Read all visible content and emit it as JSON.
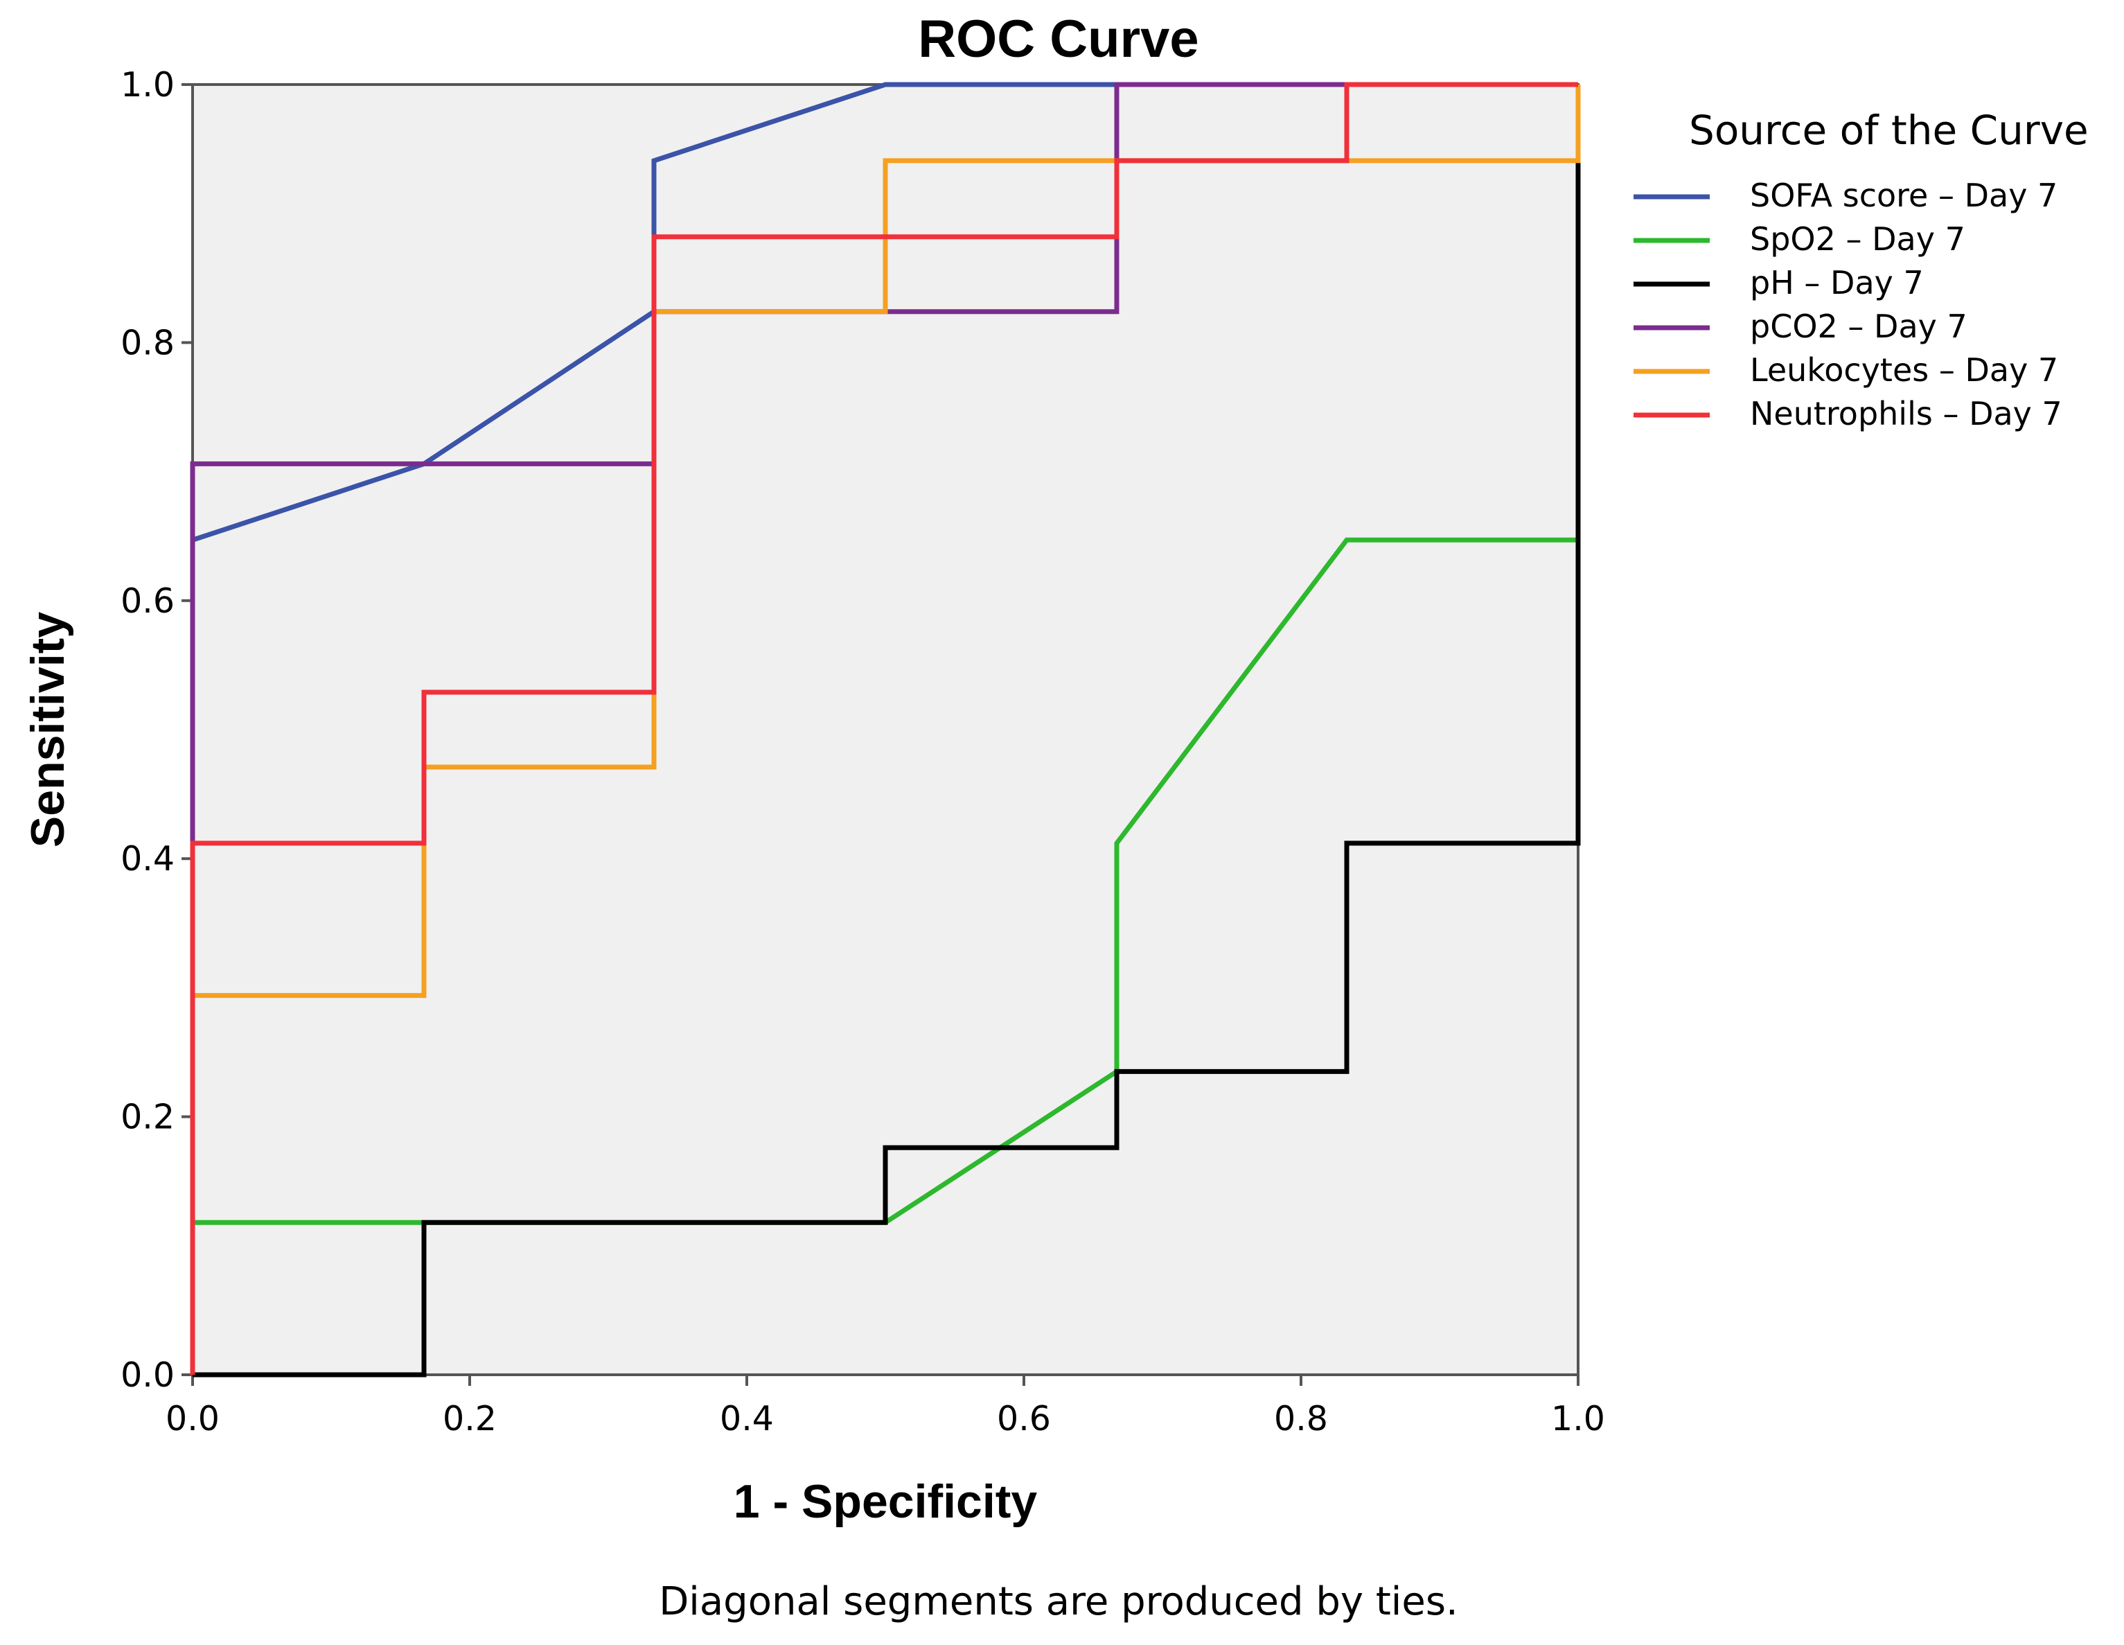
{
  "chart_data": {
    "type": "line",
    "title": "ROC Curve",
    "xlabel": "1 - Specificity",
    "ylabel": "Sensitivity",
    "xlim": [
      0,
      1
    ],
    "ylim": [
      0,
      1
    ],
    "x_ticks": [
      "0.0",
      "0.2",
      "0.4",
      "0.6",
      "0.8",
      "1.0"
    ],
    "y_ticks": [
      "0.0",
      "0.2",
      "0.4",
      "0.6",
      "0.8",
      "1.0"
    ],
    "grid": false,
    "legend_title": "Source of the Curve",
    "legend_position": "top-right",
    "footnote": "Diagonal segments are produced by ties.",
    "series": [
      {
        "name": "SOFA score – Day 7",
        "color": "#3b53a8",
        "x": [
          0,
          0,
          0.167,
          0.333,
          0.333,
          0.5,
          1,
          1
        ],
        "y": [
          0,
          0.647,
          0.706,
          0.824,
          0.941,
          1,
          1,
          1
        ]
      },
      {
        "name": "SpO2 – Day 7",
        "color": "#2db82d",
        "x": [
          0,
          0,
          0.5,
          0.667,
          0.667,
          0.833,
          1,
          1
        ],
        "y": [
          0,
          0.118,
          0.118,
          0.235,
          0.412,
          0.647,
          0.647,
          1
        ]
      },
      {
        "name": "pH – Day 7",
        "color": "#000000",
        "x": [
          0,
          0.167,
          0.167,
          0.5,
          0.5,
          0.667,
          0.667,
          0.833,
          0.833,
          1,
          1
        ],
        "y": [
          0,
          0,
          0.118,
          0.118,
          0.176,
          0.176,
          0.235,
          0.235,
          0.412,
          0.412,
          1
        ]
      },
      {
        "name": "pCO2 – Day 7",
        "color": "#7b2d8e",
        "x": [
          0,
          0,
          0.333,
          0.333,
          0.667,
          0.667,
          1
        ],
        "y": [
          0,
          0.706,
          0.706,
          0.824,
          0.824,
          1,
          1
        ]
      },
      {
        "name": "Leukocytes – Day 7",
        "color": "#f5a020",
        "x": [
          0,
          0,
          0.167,
          0.167,
          0.333,
          0.333,
          0.5,
          0.5,
          1,
          1
        ],
        "y": [
          0,
          0.294,
          0.294,
          0.471,
          0.471,
          0.824,
          0.824,
          0.941,
          0.941,
          1
        ]
      },
      {
        "name": "Neutrophils – Day 7",
        "color": "#f0303a",
        "x": [
          0,
          0,
          0.167,
          0.167,
          0.333,
          0.333,
          0.667,
          0.667,
          0.833,
          0.833,
          1
        ],
        "y": [
          0,
          0.412,
          0.412,
          0.529,
          0.529,
          0.882,
          0.882,
          0.941,
          0.941,
          1,
          1
        ]
      }
    ]
  }
}
